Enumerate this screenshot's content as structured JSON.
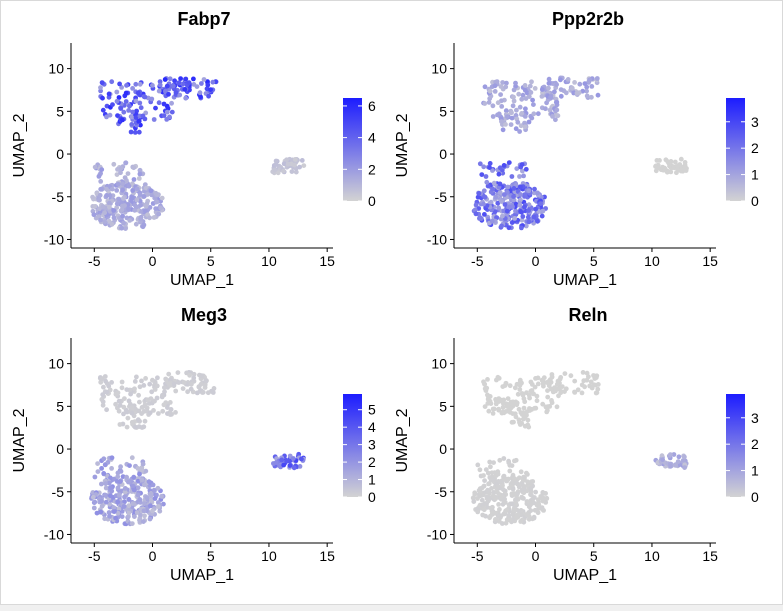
{
  "figure": {
    "colors": {
      "low": "#d3d3d3",
      "high": "#1c1cff",
      "axis": "#000000",
      "cell_gray": "#d3d3d3"
    }
  },
  "chart_data": [
    {
      "type": "scatter",
      "title": "Fabp7",
      "xlabel": "UMAP_1",
      "ylabel": "UMAP_2",
      "xlim": [
        -7,
        15.5
      ],
      "ylim": [
        -11,
        13
      ],
      "xticks": [
        -5,
        0,
        5,
        10,
        15
      ],
      "yticks": [
        -10,
        -5,
        0,
        5,
        10
      ],
      "legend": {
        "ticks": [
          0,
          2,
          4,
          6
        ],
        "max": 6.5,
        "placement": "right"
      },
      "grid": false,
      "regions": [
        {
          "cluster": "top-band",
          "expression_level": 0.62
        },
        {
          "cluster": "lower-blob",
          "expression_level": 0.22
        },
        {
          "cluster": "right-island",
          "expression_level": 0.08
        }
      ]
    },
    {
      "type": "scatter",
      "title": "Ppp2r2b",
      "xlabel": "UMAP_1",
      "ylabel": "UMAP_2",
      "xlim": [
        -7,
        15.5
      ],
      "ylim": [
        -11,
        13
      ],
      "xticks": [
        -5,
        0,
        5,
        10,
        15
      ],
      "yticks": [
        -10,
        -5,
        0,
        5,
        10
      ],
      "legend": {
        "ticks": [
          0,
          1,
          2,
          3
        ],
        "max": 3.9,
        "placement": "right"
      },
      "grid": false,
      "regions": [
        {
          "cluster": "top-band",
          "expression_level": 0.22
        },
        {
          "cluster": "lower-blob",
          "expression_level": 0.5
        },
        {
          "cluster": "right-island",
          "expression_level": 0.0
        }
      ]
    },
    {
      "type": "scatter",
      "title": "Meg3",
      "xlabel": "UMAP_1",
      "ylabel": "UMAP_2",
      "xlim": [
        -7,
        15.5
      ],
      "ylim": [
        -11,
        13
      ],
      "xticks": [
        -5,
        0,
        5,
        10,
        15
      ],
      "yticks": [
        -10,
        -5,
        0,
        5,
        10
      ],
      "legend": {
        "ticks": [
          0,
          1,
          2,
          3,
          4,
          5
        ],
        "max": 5.9,
        "placement": "right"
      },
      "grid": false,
      "regions": [
        {
          "cluster": "top-band",
          "expression_level": 0.03
        },
        {
          "cluster": "lower-blob",
          "expression_level": 0.25
        },
        {
          "cluster": "right-island",
          "expression_level": 0.55
        }
      ]
    },
    {
      "type": "scatter",
      "title": "Reln",
      "xlabel": "UMAP_1",
      "ylabel": "UMAP_2",
      "xlim": [
        -7,
        15.5
      ],
      "ylim": [
        -11,
        13
      ],
      "xticks": [
        -5,
        0,
        5,
        10,
        15
      ],
      "yticks": [
        -10,
        -5,
        0,
        5,
        10
      ],
      "legend": {
        "ticks": [
          0,
          1,
          2,
          3
        ],
        "max": 3.9,
        "placement": "right"
      },
      "grid": false,
      "regions": [
        {
          "cluster": "top-band",
          "expression_level": 0.0
        },
        {
          "cluster": "lower-blob",
          "expression_level": 0.01
        },
        {
          "cluster": "right-island",
          "expression_level": 0.2
        }
      ]
    }
  ]
}
